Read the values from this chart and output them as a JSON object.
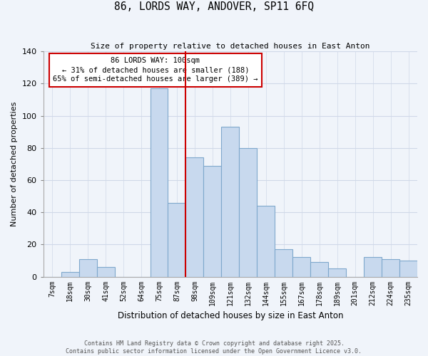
{
  "title": "86, LORDS WAY, ANDOVER, SP11 6FQ",
  "subtitle": "Size of property relative to detached houses in East Anton",
  "xlabel": "Distribution of detached houses by size in East Anton",
  "ylabel": "Number of detached properties",
  "categories": [
    "7sqm",
    "18sqm",
    "30sqm",
    "41sqm",
    "52sqm",
    "64sqm",
    "75sqm",
    "87sqm",
    "98sqm",
    "109sqm",
    "121sqm",
    "132sqm",
    "144sqm",
    "155sqm",
    "167sqm",
    "178sqm",
    "189sqm",
    "201sqm",
    "212sqm",
    "224sqm",
    "235sqm"
  ],
  "values": [
    0,
    3,
    11,
    6,
    0,
    0,
    117,
    46,
    74,
    69,
    93,
    80,
    44,
    17,
    12,
    9,
    5,
    0,
    12,
    11,
    10
  ],
  "bar_color": "#c8d9ee",
  "bar_edge_color": "#7fa8cc",
  "vline_color": "#cc0000",
  "annotation_title": "86 LORDS WAY: 100sqm",
  "annotation_line1": "← 31% of detached houses are smaller (188)",
  "annotation_line2": "65% of semi-detached houses are larger (389) →",
  "annotation_box_color": "#cc0000",
  "ylim": [
    0,
    140
  ],
  "yticks": [
    0,
    20,
    40,
    60,
    80,
    100,
    120,
    140
  ],
  "footnote1": "Contains HM Land Registry data © Crown copyright and database right 2025.",
  "footnote2": "Contains public sector information licensed under the Open Government Licence v3.0.",
  "bg_color": "#f0f4fa",
  "grid_color": "#d0d8e8"
}
